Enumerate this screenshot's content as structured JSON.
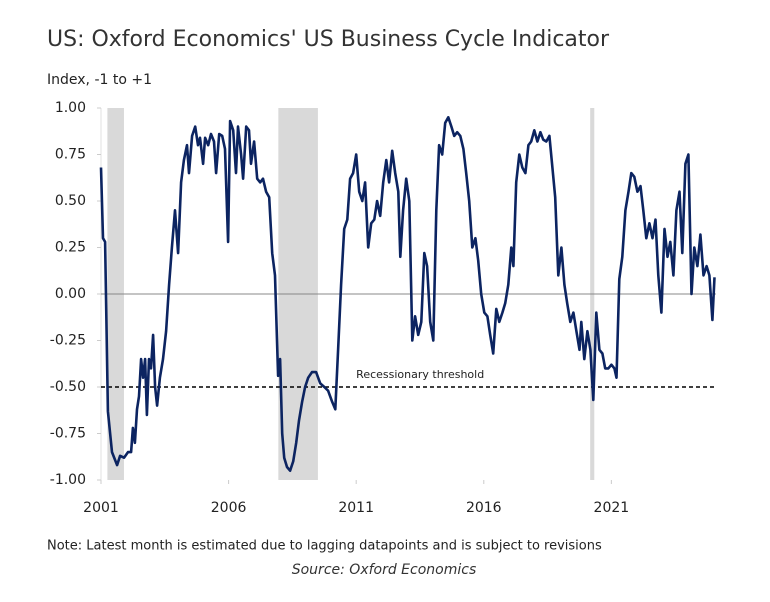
{
  "chart_data": {
    "type": "line",
    "title": "US: Oxford Economics' US Business Cycle Indicator",
    "y_label": "Index, -1 to +1",
    "note": "Note: Latest month is estimated due to lagging datapoints and is subject to revisions",
    "source": "Source: Oxford Economics",
    "xlim": [
      2001,
      2025.1
    ],
    "xticks": [
      2001,
      2006,
      2011,
      2016,
      2021
    ],
    "ylim": [
      -1,
      1
    ],
    "yticks": [
      {
        "value": -1,
        "label": "-1.00"
      },
      {
        "value": -0.75,
        "label": "-0.75"
      },
      {
        "value": -0.5,
        "label": "-0.50"
      },
      {
        "value": -0.25,
        "label": "-0.25"
      },
      {
        "value": 0,
        "label": "0.00"
      },
      {
        "value": 0.25,
        "label": "0.25"
      },
      {
        "value": 0.5,
        "label": "0.50"
      },
      {
        "value": 0.75,
        "label": "0.75"
      },
      {
        "value": 1,
        "label": "1.00"
      }
    ],
    "shaded_periods": [
      [
        2001.25,
        2001.9
      ],
      [
        2007.95,
        2009.5
      ],
      [
        2020.17,
        2020.33
      ]
    ],
    "shade_color": "#d9d9d9",
    "threshold": {
      "value": -0.5,
      "label": "Recessionary threshold",
      "x": 2011.0
    },
    "series": [
      {
        "name": "US Business Cycle Indicator",
        "color": "#0c2461",
        "x": [
          2001.0,
          2001.08,
          2001.16,
          2001.27,
          2001.43,
          2001.63,
          2001.75,
          2001.9,
          2002.06,
          2002.18,
          2002.25,
          2002.33,
          2002.41,
          2002.49,
          2002.57,
          2002.65,
          2002.73,
          2002.8,
          2002.88,
          2002.96,
          2003.04,
          2003.12,
          2003.2,
          2003.31,
          2003.43,
          2003.55,
          2003.67,
          2003.78,
          2003.9,
          2004.02,
          2004.14,
          2004.25,
          2004.37,
          2004.45,
          2004.57,
          2004.69,
          2004.8,
          2004.88,
          2005.0,
          2005.08,
          2005.2,
          2005.31,
          2005.43,
          2005.51,
          2005.63,
          2005.75,
          2005.86,
          2005.98,
          2006.06,
          2006.18,
          2006.29,
          2006.37,
          2006.49,
          2006.57,
          2006.69,
          2006.8,
          2006.88,
          2007.0,
          2007.12,
          2007.24,
          2007.35,
          2007.47,
          2007.59,
          2007.71,
          2007.82,
          2007.94,
          2008.02,
          2008.1,
          2008.18,
          2008.29,
          2008.41,
          2008.53,
          2008.65,
          2008.76,
          2008.88,
          2009.0,
          2009.12,
          2009.27,
          2009.43,
          2009.59,
          2009.75,
          2009.9,
          2010.06,
          2010.18,
          2010.29,
          2010.41,
          2010.53,
          2010.65,
          2010.76,
          2010.88,
          2011.0,
          2011.12,
          2011.24,
          2011.35,
          2011.47,
          2011.59,
          2011.71,
          2011.82,
          2011.94,
          2012.06,
          2012.18,
          2012.29,
          2012.41,
          2012.53,
          2012.65,
          2012.73,
          2012.84,
          2012.96,
          2013.08,
          2013.2,
          2013.31,
          2013.43,
          2013.55,
          2013.67,
          2013.78,
          2013.9,
          2014.02,
          2014.14,
          2014.25,
          2014.37,
          2014.49,
          2014.61,
          2014.73,
          2014.84,
          2014.96,
          2015.08,
          2015.2,
          2015.31,
          2015.43,
          2015.55,
          2015.67,
          2015.78,
          2015.9,
          2016.02,
          2016.14,
          2016.25,
          2016.37,
          2016.49,
          2016.61,
          2016.73,
          2016.84,
          2016.96,
          2017.08,
          2017.16,
          2017.27,
          2017.39,
          2017.51,
          2017.63,
          2017.75,
          2017.86,
          2017.98,
          2018.1,
          2018.22,
          2018.33,
          2018.45,
          2018.57,
          2018.69,
          2018.8,
          2018.92,
          2019.04,
          2019.16,
          2019.27,
          2019.39,
          2019.51,
          2019.63,
          2019.75,
          2019.82,
          2019.94,
          2020.06,
          2020.18,
          2020.29,
          2020.41,
          2020.53,
          2020.65,
          2020.76,
          2020.88,
          2021.0,
          2021.12,
          2021.2,
          2021.31,
          2021.43,
          2021.55,
          2021.67,
          2021.78,
          2021.9,
          2022.02,
          2022.14,
          2022.25,
          2022.37,
          2022.49,
          2022.61,
          2022.73,
          2022.84,
          2022.96,
          2023.08,
          2023.2,
          2023.31,
          2023.43,
          2023.55,
          2023.67,
          2023.78,
          2023.9,
          2024.02,
          2024.14,
          2024.25,
          2024.37,
          2024.49,
          2024.61,
          2024.73,
          2024.84,
          2024.96,
          2025.04
        ],
        "values": [
          0.68,
          0.3,
          0.28,
          -0.63,
          -0.85,
          -0.92,
          -0.87,
          -0.88,
          -0.85,
          -0.85,
          -0.72,
          -0.8,
          -0.62,
          -0.55,
          -0.35,
          -0.45,
          -0.35,
          -0.65,
          -0.35,
          -0.4,
          -0.22,
          -0.5,
          -0.6,
          -0.45,
          -0.35,
          -0.2,
          0.05,
          0.25,
          0.45,
          0.22,
          0.6,
          0.72,
          0.8,
          0.65,
          0.85,
          0.9,
          0.8,
          0.84,
          0.7,
          0.84,
          0.8,
          0.86,
          0.82,
          0.65,
          0.86,
          0.85,
          0.78,
          0.28,
          0.93,
          0.88,
          0.65,
          0.9,
          0.75,
          0.62,
          0.9,
          0.88,
          0.7,
          0.82,
          0.62,
          0.6,
          0.62,
          0.55,
          0.52,
          0.22,
          0.1,
          -0.44,
          -0.35,
          -0.75,
          -0.88,
          -0.93,
          -0.95,
          -0.9,
          -0.8,
          -0.68,
          -0.58,
          -0.5,
          -0.45,
          -0.42,
          -0.42,
          -0.48,
          -0.5,
          -0.52,
          -0.58,
          -0.62,
          -0.3,
          0.05,
          0.35,
          0.4,
          0.62,
          0.65,
          0.75,
          0.55,
          0.5,
          0.6,
          0.25,
          0.38,
          0.4,
          0.5,
          0.42,
          0.6,
          0.72,
          0.6,
          0.77,
          0.65,
          0.55,
          0.2,
          0.45,
          0.62,
          0.5,
          -0.25,
          -0.12,
          -0.22,
          -0.15,
          0.22,
          0.15,
          -0.15,
          -0.25,
          0.45,
          0.8,
          0.75,
          0.92,
          0.95,
          0.9,
          0.85,
          0.87,
          0.85,
          0.78,
          0.65,
          0.5,
          0.25,
          0.3,
          0.18,
          0.0,
          -0.1,
          -0.12,
          -0.22,
          -0.32,
          -0.08,
          -0.15,
          -0.1,
          -0.05,
          0.05,
          0.25,
          0.15,
          0.6,
          0.75,
          0.68,
          0.65,
          0.8,
          0.82,
          0.88,
          0.82,
          0.87,
          0.83,
          0.82,
          0.85,
          0.68,
          0.52,
          0.1,
          0.25,
          0.05,
          -0.05,
          -0.15,
          -0.1,
          -0.2,
          -0.3,
          -0.15,
          -0.35,
          -0.2,
          -0.3,
          -0.57,
          -0.1,
          -0.3,
          -0.32,
          -0.4,
          -0.4,
          -0.38,
          -0.4,
          -0.45,
          0.08,
          0.2,
          0.45,
          0.55,
          0.65,
          0.63,
          0.55,
          0.58,
          0.45,
          0.3,
          0.38,
          0.3,
          0.4,
          0.1,
          -0.1,
          0.35,
          0.2,
          0.28,
          0.1,
          0.45,
          0.55,
          0.22,
          0.7,
          0.75,
          0.0,
          0.25,
          0.15,
          0.32,
          0.1,
          0.15,
          0.1,
          -0.14,
          0.09
        ]
      }
    ]
  }
}
